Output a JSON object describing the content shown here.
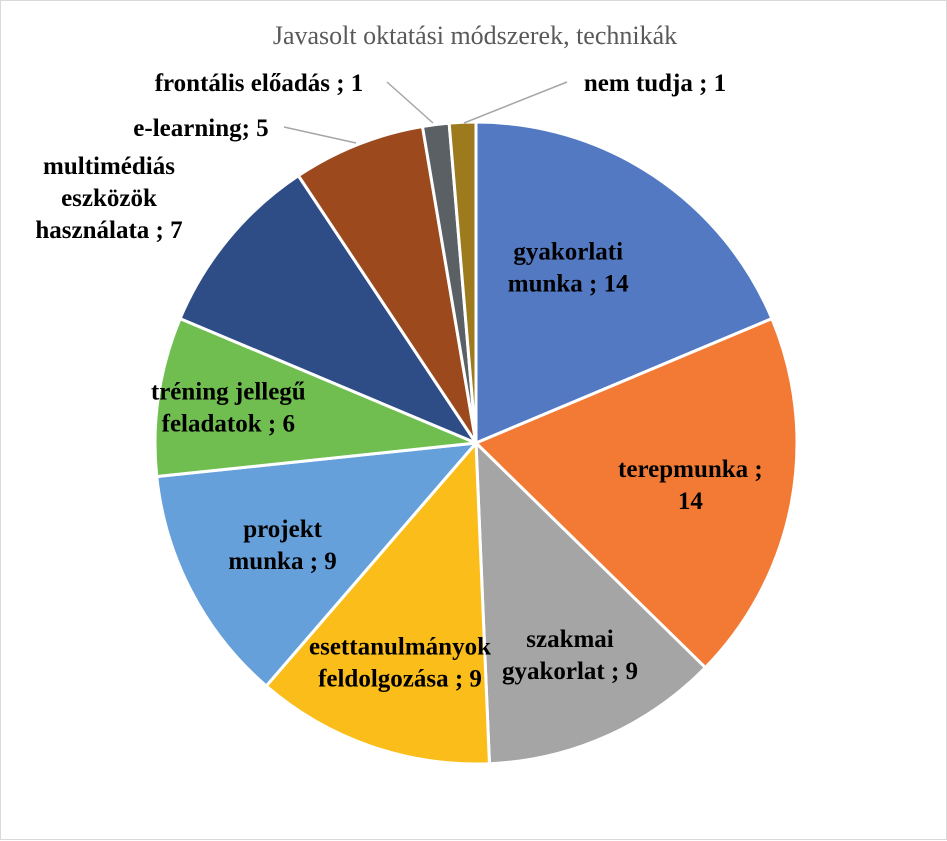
{
  "chart_data": {
    "type": "pie",
    "title": "Javasolt oktatási módszerek, technikák",
    "slices": [
      {
        "name": "gyakorlati munka",
        "value": 14,
        "color": "#5379C3",
        "label_lines": [
          "gyakorlati",
          "munka ; 14"
        ]
      },
      {
        "name": "terepmunka",
        "value": 14,
        "color": "#F27A35",
        "label_lines": [
          "terepmunka ;",
          "14"
        ]
      },
      {
        "name": "szakmai gyakorlat",
        "value": 9,
        "color": "#A5A5A5",
        "label_lines": [
          "szakmai",
          "gyakorlat ; 9"
        ]
      },
      {
        "name": "esettanulmányok feldolgozása",
        "value": 9,
        "color": "#FBBD19",
        "label_lines": [
          "esettanulmányok",
          "feldolgozása ; 9"
        ]
      },
      {
        "name": "projekt munka",
        "value": 9,
        "color": "#66A0DA",
        "label_lines": [
          "projekt",
          "munka ; 9"
        ]
      },
      {
        "name": "tréning jellegű feladatok",
        "value": 6,
        "color": "#70BE50",
        "label_lines": [
          "tréning jellegű",
          "feladatok ; 6"
        ]
      },
      {
        "name": "multimédiás eszközök használata",
        "value": 7,
        "color": "#2E4D86",
        "label_lines": [
          "multimédiás",
          "eszközök",
          "használata ; 7"
        ]
      },
      {
        "name": "e-learning",
        "value": 5,
        "color": "#9C491D",
        "label_lines": [
          "e-learning; 5"
        ]
      },
      {
        "name": "frontális előadás",
        "value": 1,
        "color": "#5B6065",
        "label_lines": [
          "frontális előadás ; 1"
        ]
      },
      {
        "name": "nem tudja",
        "value": 1,
        "color": "#9E7A1F",
        "label_lines": [
          "nem tudja ; 1"
        ]
      }
    ]
  }
}
